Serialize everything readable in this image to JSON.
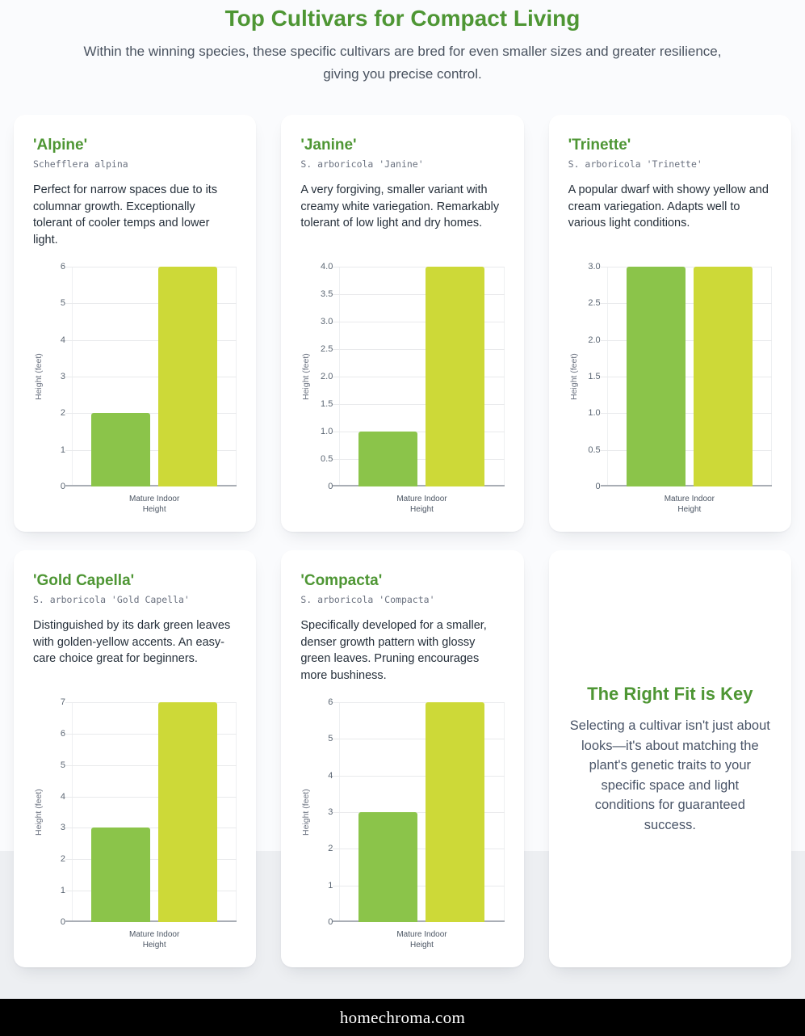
{
  "header": {
    "title": "Top Cultivars for Compact Living",
    "subtitle": "Within the winning species, these specific cultivars are bred for even smaller sizes and greater resilience, giving you precise control."
  },
  "colors": {
    "accent_green": "#4e9634",
    "bar_green": "#8bc44a",
    "bar_lime": "#cdd938",
    "page_top_bg": "#fafbfd",
    "page_bottom_bg": "#edeff2",
    "footer_bg": "#000000"
  },
  "cards": [
    {
      "name": "'Alpine'",
      "species": "Schefflera alpina",
      "description": "Perfect for narrow spaces due to its columnar growth. Exceptionally tolerant of cooler temps and lower light."
    },
    {
      "name": "'Janine'",
      "species": "S. arboricola 'Janine'",
      "description": "A very forgiving, smaller variant with creamy white variegation. Remarkably tolerant of low light and dry homes."
    },
    {
      "name": "'Trinette'",
      "species": "S. arboricola 'Trinette'",
      "description": "A popular dwarf with showy yellow and cream variegation. Adapts well to various light conditions."
    },
    {
      "name": "'Gold Capella'",
      "species": "S. arboricola 'Gold Capella'",
      "description": "Distinguished by its dark green leaves with golden-yellow accents. An easy-care choice great for beginners."
    },
    {
      "name": "'Compacta'",
      "species": "S. arboricola 'Compacta'",
      "description": "Specifically developed for a smaller, denser growth pattern with glossy green leaves. Pruning encourages more bushiness."
    }
  ],
  "chart_data": [
    {
      "type": "bar",
      "title": "'Alpine'",
      "ylabel": "Height (feet)",
      "categories": [
        "Mature Indoor Height"
      ],
      "values": [
        2,
        6
      ],
      "bar_colors": [
        "#8bc44a",
        "#cdd938"
      ],
      "ymax": 6,
      "yticks": [
        "6",
        "5",
        "4",
        "3",
        "2",
        "1",
        "0"
      ],
      "grid": true,
      "legend": false
    },
    {
      "type": "bar",
      "title": "'Janine'",
      "ylabel": "Height (feet)",
      "categories": [
        "Mature Indoor Height"
      ],
      "values": [
        1,
        4
      ],
      "bar_colors": [
        "#8bc44a",
        "#cdd938"
      ],
      "ymax": 4,
      "yticks": [
        "4.0",
        "3.5",
        "3.0",
        "2.5",
        "2.0",
        "1.5",
        "1.0",
        "0.5",
        "0"
      ],
      "grid": true,
      "legend": false
    },
    {
      "type": "bar",
      "title": "'Trinette'",
      "ylabel": "Height (feet)",
      "categories": [
        "Mature Indoor Height"
      ],
      "values": [
        3,
        3
      ],
      "bar_colors": [
        "#8bc44a",
        "#cdd938"
      ],
      "ymax": 3,
      "yticks": [
        "3.0",
        "2.5",
        "2.0",
        "1.5",
        "1.0",
        "0.5",
        "0"
      ],
      "grid": true,
      "legend": false
    },
    {
      "type": "bar",
      "title": "'Gold Capella'",
      "ylabel": "Height (feet)",
      "categories": [
        "Mature Indoor Height"
      ],
      "values": [
        3,
        7
      ],
      "bar_colors": [
        "#8bc44a",
        "#cdd938"
      ],
      "ymax": 7,
      "yticks": [
        "7",
        "6",
        "5",
        "4",
        "3",
        "2",
        "1",
        "0"
      ],
      "grid": true,
      "legend": false
    },
    {
      "type": "bar",
      "title": "'Compacta'",
      "ylabel": "Height (feet)",
      "categories": [
        "Mature Indoor Height"
      ],
      "values": [
        3,
        6
      ],
      "bar_colors": [
        "#8bc44a",
        "#cdd938"
      ],
      "ymax": 6,
      "yticks": [
        "6",
        "5",
        "4",
        "3",
        "2",
        "1",
        "0"
      ],
      "grid": true,
      "legend": false
    }
  ],
  "highlight_card": {
    "title": "The Right Fit is Key",
    "text": "Selecting a cultivar isn't just about looks—it's about matching the plant's genetic traits to your specific space and light conditions for guaranteed success."
  },
  "footer": {
    "site": "homechroma.com"
  }
}
